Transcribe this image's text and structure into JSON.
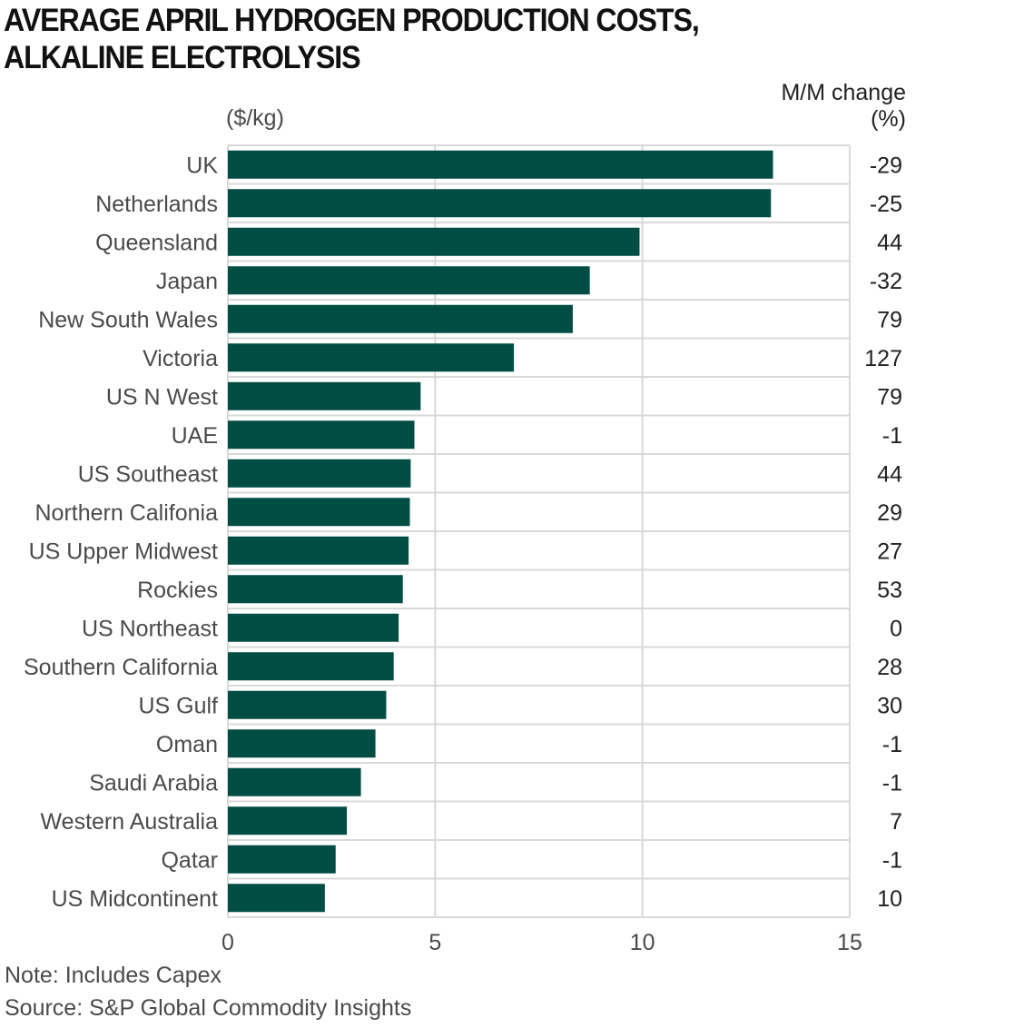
{
  "header": {
    "title_line1": "AVERAGE APRIL HYDROGEN PRODUCTION COSTS,",
    "title_line2": "ALKALINE ELECTROLYSIS",
    "unit": "($/kg)",
    "mm_line1": "M/M change",
    "mm_line2": "(%)"
  },
  "footer": {
    "note": "Note: Includes Capex",
    "source": "Source: S&P Global Commodity Insights"
  },
  "colors": {
    "bar": "#004d44",
    "grid": "#d9d9d9"
  },
  "chart_data": {
    "type": "bar",
    "orientation": "horizontal",
    "xlim": [
      0,
      15
    ],
    "xticks": [
      "0",
      "5",
      "10",
      "15"
    ],
    "grid": true,
    "categories": [
      "UK",
      "Netherlands",
      "Queensland",
      "Japan",
      "New South Wales",
      "Victoria",
      "US N West",
      "UAE",
      "US Southeast",
      "Northern Califonia",
      "US Upper Midwest",
      "Rockies",
      "US Northeast",
      "Southern California",
      "US Gulf",
      "Oman",
      "Saudi Arabia",
      "Western Australia",
      "Qatar",
      "US Midcontinent"
    ],
    "values": [
      13.15,
      13.1,
      9.93,
      8.73,
      8.32,
      6.9,
      4.65,
      4.5,
      4.41,
      4.39,
      4.36,
      4.22,
      4.12,
      4.0,
      3.82,
      3.56,
      3.21,
      2.87,
      2.6,
      2.34
    ],
    "mm_change": [
      "-29",
      "-25",
      "44",
      "-32",
      "79",
      "127",
      "79",
      "-1",
      "44",
      "29",
      "27",
      "53",
      "0",
      "28",
      "30",
      "-1",
      "-1",
      "7",
      "-1",
      "10"
    ]
  }
}
